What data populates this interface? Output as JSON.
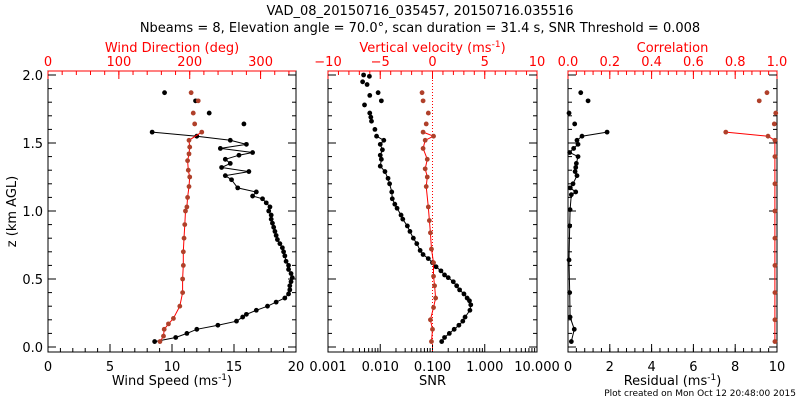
{
  "title_line1": "VAD_08_20150716_035457, 20150716.035516",
  "title_line2": "Nbeams = 8, Elevation angle = 70.0°, scan duration = 31.4 s, SNR Threshold = 0.008",
  "footer": "Plot created on Mon Oct 12 20:48:00 2015",
  "colors": {
    "primary": "#000000",
    "secondary": "#b0402a",
    "top_axis": "#ff0000"
  },
  "chart_data": [
    {
      "type": "scatter",
      "ylabel": "z (km AGL)",
      "ylim": [
        0,
        2
      ],
      "yticks": [
        "0.0",
        "0.5",
        "1.0",
        "1.5",
        "2.0"
      ],
      "bottom_axis": {
        "label": "Wind Speed (ms",
        "label_sup": "-1",
        "label_end": ")",
        "range": [
          0,
          20
        ],
        "scale": "linear",
        "ticks": [
          "0",
          "5",
          "10",
          "15",
          "20"
        ]
      },
      "top_axis": {
        "label": "Wind Direction (deg)",
        "range": [
          0,
          350
        ],
        "scale": "linear",
        "ticks": [
          "0",
          "100",
          "200",
          "300"
        ]
      },
      "series": [
        {
          "name": "Wind Speed",
          "axis": "bottom",
          "color": "#000000",
          "points": [
            [
              8.6,
              0.04
            ],
            [
              10.3,
              0.07
            ],
            [
              11.2,
              0.1
            ],
            [
              12.0,
              0.13
            ],
            [
              13.7,
              0.16
            ],
            [
              15.2,
              0.19
            ],
            [
              15.7,
              0.22
            ],
            [
              16.0,
              0.24
            ],
            [
              16.8,
              0.27
            ],
            [
              17.7,
              0.3
            ],
            [
              18.4,
              0.33
            ],
            [
              19.1,
              0.36
            ],
            [
              19.4,
              0.39
            ],
            [
              19.5,
              0.42
            ],
            [
              19.5,
              0.45
            ],
            [
              19.6,
              0.48
            ],
            [
              19.7,
              0.51
            ],
            [
              19.6,
              0.54
            ],
            [
              19.4,
              0.57
            ],
            [
              19.4,
              0.6
            ],
            [
              19.2,
              0.63
            ],
            [
              19.1,
              0.67
            ],
            [
              19.0,
              0.7
            ],
            [
              18.9,
              0.73
            ],
            [
              18.7,
              0.76
            ],
            [
              18.5,
              0.79
            ],
            [
              18.4,
              0.82
            ],
            [
              18.3,
              0.85
            ],
            [
              18.2,
              0.88
            ],
            [
              18.1,
              0.91
            ],
            [
              18.0,
              0.94
            ],
            [
              18.0,
              0.97
            ],
            [
              17.8,
              1.0
            ],
            [
              17.9,
              1.03
            ],
            [
              17.6,
              1.06
            ],
            [
              17.3,
              1.09
            ],
            [
              16.5,
              1.11
            ],
            [
              16.8,
              1.14
            ],
            [
              15.3,
              1.17
            ],
            [
              14.8,
              1.23
            ],
            [
              14.3,
              1.26
            ],
            [
              16.2,
              1.29
            ],
            [
              14.0,
              1.32
            ],
            [
              14.7,
              1.35
            ],
            [
              14.3,
              1.38
            ],
            [
              15.4,
              1.41
            ],
            [
              16.5,
              1.43
            ],
            [
              13.9,
              1.46
            ],
            [
              16.0,
              1.49
            ],
            [
              14.7,
              1.52
            ],
            [
              12.0,
              1.55
            ],
            [
              8.4,
              1.58
            ],
            [
              15.8,
              1.64
            ],
            [
              13.0,
              1.72
            ],
            [
              11.9,
              1.81
            ],
            [
              9.4,
              1.87
            ]
          ]
        },
        {
          "name": "Wind Direction",
          "axis": "top",
          "color": "#b0402a",
          "points": [
            [
              158,
              0.04
            ],
            [
              163,
              0.08
            ],
            [
              164,
              0.13
            ],
            [
              170,
              0.17
            ],
            [
              177,
              0.21
            ],
            [
              186,
              0.3
            ],
            [
              190,
              0.4
            ],
            [
              190,
              0.5
            ],
            [
              191,
              0.6
            ],
            [
              191,
              0.7
            ],
            [
              192,
              0.8
            ],
            [
              193,
              0.9
            ],
            [
              194,
              1.0
            ],
            [
              196,
              1.03
            ],
            [
              197,
              1.1
            ],
            [
              199,
              1.18
            ],
            [
              200,
              1.25
            ],
            [
              198,
              1.3
            ],
            [
              197,
              1.37
            ],
            [
              199,
              1.42
            ],
            [
              200,
              1.47
            ],
            [
              199,
              1.52
            ],
            [
              217,
              1.58
            ],
            [
              207,
              1.64
            ],
            [
              205,
              1.72
            ],
            [
              212,
              1.81
            ],
            [
              202,
              1.87
            ]
          ]
        }
      ]
    },
    {
      "type": "scatter",
      "ylim": [
        0,
        2
      ],
      "bottom_axis": {
        "label": "SNR",
        "range": [
          0.001,
          10
        ],
        "scale": "log",
        "ticks": [
          "0.001",
          "0.010",
          "0.100",
          "1.000",
          "10.000"
        ]
      },
      "top_axis": {
        "label": "Vertical velocity (ms",
        "label_sup": "-1",
        "label_end": ")",
        "range": [
          -10,
          10
        ],
        "scale": "linear",
        "ticks": [
          "−10",
          "−5",
          "0",
          "5",
          "10"
        ]
      },
      "series": [
        {
          "name": "SNR",
          "axis": "bottom",
          "color": "#000000",
          "points": [
            [
              0.15,
              0.04
            ],
            [
              0.17,
              0.07
            ],
            [
              0.21,
              0.1
            ],
            [
              0.26,
              0.13
            ],
            [
              0.32,
              0.16
            ],
            [
              0.38,
              0.19
            ],
            [
              0.42,
              0.22
            ],
            [
              0.52,
              0.27
            ],
            [
              0.54,
              0.31
            ],
            [
              0.51,
              0.34
            ],
            [
              0.46,
              0.36
            ],
            [
              0.4,
              0.39
            ],
            [
              0.33,
              0.42
            ],
            [
              0.29,
              0.45
            ],
            [
              0.25,
              0.48
            ],
            [
              0.2,
              0.51
            ],
            [
              0.17,
              0.53
            ],
            [
              0.145,
              0.56
            ],
            [
              0.117,
              0.59
            ],
            [
              0.1,
              0.62
            ],
            [
              0.083,
              0.65
            ],
            [
              0.066,
              0.68
            ],
            [
              0.058,
              0.71
            ],
            [
              0.05,
              0.76
            ],
            [
              0.043,
              0.8
            ],
            [
              0.037,
              0.85
            ],
            [
              0.033,
              0.89
            ],
            [
              0.027,
              0.94
            ],
            [
              0.025,
              0.97
            ],
            [
              0.021,
              1.02
            ],
            [
              0.019,
              1.05
            ],
            [
              0.017,
              1.09
            ],
            [
              0.0166,
              1.14
            ],
            [
              0.0151,
              1.2
            ],
            [
              0.0141,
              1.24
            ],
            [
              0.0123,
              1.29
            ],
            [
              0.01,
              1.33
            ],
            [
              0.0105,
              1.38
            ],
            [
              0.01,
              1.41
            ],
            [
              0.011,
              1.45
            ],
            [
              0.01,
              1.49
            ],
            [
              0.0117,
              1.52
            ],
            [
              0.0085,
              1.55
            ],
            [
              0.0079,
              1.6
            ],
            [
              0.0068,
              1.66
            ],
            [
              0.0066,
              1.69
            ],
            [
              0.0063,
              1.72
            ],
            [
              0.005,
              1.78
            ],
            [
              0.0105,
              1.81
            ],
            [
              0.0063,
              1.85
            ],
            [
              0.0091,
              1.87
            ],
            [
              0.0056,
              1.93
            ],
            [
              0.0046,
              1.95
            ],
            [
              0.0062,
              1.99
            ],
            [
              0.0048,
              2.0
            ]
          ]
        },
        {
          "name": "Vertical velocity",
          "axis": "top",
          "color": "#b0402a",
          "points": [
            [
              -0.1,
              0.04
            ],
            [
              0.0,
              0.13
            ],
            [
              -0.2,
              0.2
            ],
            [
              0.1,
              0.29
            ],
            [
              0.3,
              0.36
            ],
            [
              0.2,
              0.45
            ],
            [
              0.1,
              0.52
            ],
            [
              0.1,
              0.62
            ],
            [
              -0.1,
              0.72
            ],
            [
              -0.2,
              0.84
            ],
            [
              -0.3,
              0.93
            ],
            [
              -0.4,
              1.03
            ],
            [
              -0.6,
              1.18
            ],
            [
              -0.5,
              1.25
            ],
            [
              -0.7,
              1.31
            ],
            [
              -0.5,
              1.38
            ],
            [
              -0.9,
              1.46
            ],
            [
              -0.7,
              1.52
            ],
            [
              0.1,
              1.55
            ],
            [
              -0.9,
              1.58
            ],
            [
              -0.6,
              1.64
            ],
            [
              -0.4,
              1.72
            ],
            [
              -0.9,
              1.81
            ],
            [
              -1.0,
              1.87
            ]
          ]
        }
      ],
      "reference_line": {
        "axis": "top",
        "value": 0
      }
    },
    {
      "type": "scatter",
      "ylim": [
        0,
        2
      ],
      "bottom_axis": {
        "label": "Residual (ms",
        "label_sup": "-1",
        "label_end": ")",
        "range": [
          0,
          10
        ],
        "scale": "linear",
        "ticks": [
          "0",
          "2",
          "4",
          "6",
          "8",
          "10"
        ]
      },
      "top_axis": {
        "label": "Correlation",
        "range": [
          0,
          1
        ],
        "scale": "linear",
        "ticks": [
          "0.0",
          "0.2",
          "0.4",
          "0.6",
          "0.8",
          "1.0"
        ]
      },
      "series": [
        {
          "name": "Residual",
          "axis": "bottom",
          "color": "#000000",
          "points": [
            [
              0.16,
              0.04
            ],
            [
              0.3,
              0.13
            ],
            [
              0.1,
              0.22
            ],
            [
              0.08,
              0.4
            ],
            [
              0.05,
              0.64
            ],
            [
              0.08,
              0.89
            ],
            [
              0.1,
              1.01
            ],
            [
              0.16,
              1.12
            ],
            [
              0.37,
              1.14
            ],
            [
              0.11,
              1.17
            ],
            [
              0.24,
              1.2
            ],
            [
              0.43,
              1.26
            ],
            [
              0.34,
              1.29
            ],
            [
              0.37,
              1.32
            ],
            [
              0.4,
              1.35
            ],
            [
              0.48,
              1.4
            ],
            [
              0.08,
              1.43
            ],
            [
              0.27,
              1.46
            ],
            [
              0.48,
              1.49
            ],
            [
              0.43,
              1.52
            ],
            [
              0.67,
              1.55
            ],
            [
              1.87,
              1.58
            ],
            [
              0.32,
              1.64
            ],
            [
              0.05,
              1.72
            ],
            [
              0.96,
              1.81
            ],
            [
              0.61,
              1.87
            ]
          ]
        },
        {
          "name": "Correlation",
          "axis": "top",
          "color": "#b0402a",
          "points": [
            [
              0.99,
              0.04
            ],
            [
              0.99,
              0.2
            ],
            [
              0.99,
              0.4
            ],
            [
              0.99,
              0.6
            ],
            [
              0.99,
              0.8
            ],
            [
              0.99,
              1.0
            ],
            [
              0.99,
              1.2
            ],
            [
              0.99,
              1.4
            ],
            [
              0.99,
              1.52
            ],
            [
              0.957,
              1.55
            ],
            [
              0.755,
              1.58
            ],
            [
              0.987,
              1.64
            ],
            [
              0.994,
              1.72
            ],
            [
              0.915,
              1.81
            ],
            [
              0.952,
              1.87
            ]
          ]
        }
      ]
    }
  ]
}
